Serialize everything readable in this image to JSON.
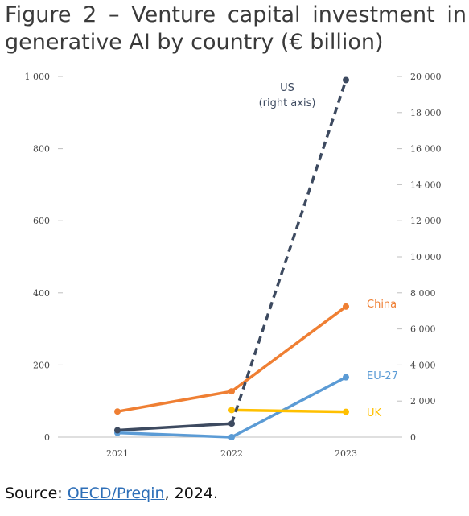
{
  "title": "Figure 2 – Venture capital investment in generative AI by country (€ billion)",
  "source": {
    "prefix": "Source: ",
    "link_text": "OECD/Preqin",
    "suffix": ", 2024."
  },
  "chart_data": {
    "type": "line",
    "title": "Figure 2 – Venture capital investment in generative AI by country (€ billion)",
    "categories": [
      "2021",
      "2022",
      "2023"
    ],
    "left_axis": {
      "min": 0,
      "max": 1000,
      "ticks": [
        0,
        200,
        400,
        600,
        800,
        1000
      ],
      "tick_labels": [
        "0",
        "200",
        "400",
        "600",
        "800",
        "1 000"
      ]
    },
    "right_axis": {
      "min": 0,
      "max": 20000,
      "ticks": [
        0,
        2000,
        4000,
        6000,
        8000,
        10000,
        12000,
        14000,
        16000,
        18000,
        20000
      ],
      "tick_labels": [
        "0",
        "2 000",
        "4 000",
        "6 000",
        "8 000",
        "10 000",
        "12 000",
        "14 000",
        "16 000",
        "18 000",
        "20 000"
      ]
    },
    "grid": false,
    "legend": "inline labels",
    "series": [
      {
        "name": "US",
        "label_line2": "(right axis)",
        "axis": "right",
        "color": "#3d4a60",
        "style": "dashed-after-2022",
        "values": [
          380,
          750,
          19800
        ]
      },
      {
        "name": "China",
        "axis": "left",
        "color": "#ef7f33",
        "style": "solid",
        "values": [
          71,
          127,
          362
        ]
      },
      {
        "name": "EU-27",
        "axis": "left",
        "color": "#5b9bd5",
        "style": "solid",
        "values": [
          12,
          0,
          166
        ]
      },
      {
        "name": "UK",
        "axis": "left",
        "color": "#ffc000",
        "style": "solid",
        "values": [
          null,
          75,
          70
        ]
      }
    ]
  }
}
